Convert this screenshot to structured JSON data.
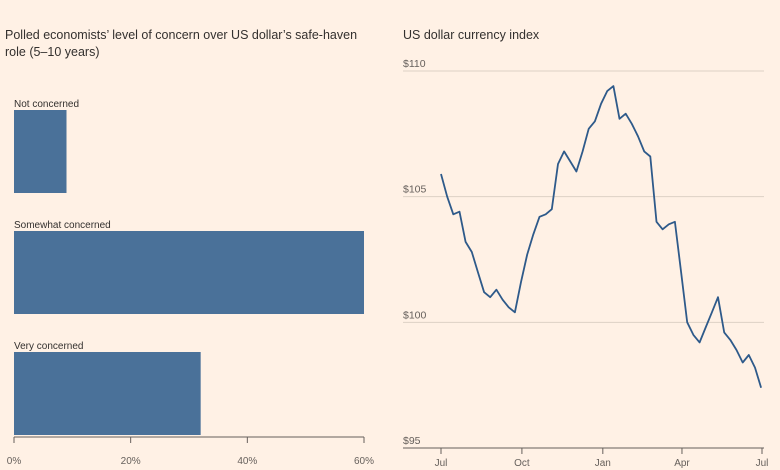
{
  "chart_data": [
    {
      "type": "bar",
      "orientation": "horizontal",
      "title": "Polled economists’ level of concern over US dollar’s safe-haven role (5–10 years)",
      "categories": [
        "Not concerned",
        "Somewhat concerned",
        "Very concerned"
      ],
      "values": [
        9,
        60,
        32
      ],
      "xlim": [
        0,
        60
      ],
      "xticks": [
        "0%",
        "20%",
        "40%",
        "60%"
      ],
      "xtick_values": [
        0,
        20,
        40,
        60
      ],
      "color": "#4a7199",
      "grid": false
    },
    {
      "type": "line",
      "title": "US dollar currency index",
      "ylim": [
        95,
        110
      ],
      "yticks": [
        "$95",
        "$100",
        "$105",
        "$110"
      ],
      "ytick_values": [
        95,
        100,
        105,
        110
      ],
      "xticks": [
        "Jul",
        "Oct",
        "Jan",
        "Apr",
        "Jul"
      ],
      "xtick_values": [
        "2024-07-01",
        "2024-10-01",
        "2025-01-01",
        "2025-04-01",
        "2025-07-01"
      ],
      "grid": true,
      "color": "#2e5a8a",
      "series": [
        {
          "x": [
            "2024-07-01",
            "2024-07-08",
            "2024-07-15",
            "2024-07-22",
            "2024-07-29",
            "2024-08-05",
            "2024-08-12",
            "2024-08-19",
            "2024-08-26",
            "2024-09-02",
            "2024-09-09",
            "2024-09-16",
            "2024-09-23",
            "2024-09-30",
            "2024-10-07",
            "2024-10-14",
            "2024-10-21",
            "2024-10-28",
            "2024-11-04",
            "2024-11-11",
            "2024-11-18",
            "2024-11-25",
            "2024-12-02",
            "2024-12-09",
            "2024-12-16",
            "2024-12-23",
            "2024-12-30",
            "2025-01-06",
            "2025-01-13",
            "2025-01-20",
            "2025-01-27",
            "2025-02-03",
            "2025-02-10",
            "2025-02-17",
            "2025-02-24",
            "2025-03-03",
            "2025-03-10",
            "2025-03-17",
            "2025-03-24",
            "2025-03-31",
            "2025-04-07",
            "2025-04-14",
            "2025-04-21",
            "2025-04-28",
            "2025-05-05",
            "2025-05-12",
            "2025-05-19",
            "2025-05-26",
            "2025-06-02",
            "2025-06-09",
            "2025-06-16",
            "2025-06-23",
            "2025-06-30"
          ],
          "values": [
            105.9,
            105.0,
            104.3,
            104.4,
            103.2,
            102.8,
            102.0,
            101.2,
            101.0,
            101.3,
            100.9,
            100.6,
            100.4,
            101.6,
            102.7,
            103.5,
            104.2,
            104.3,
            104.5,
            106.3,
            106.8,
            106.4,
            106.0,
            106.8,
            107.7,
            108.0,
            108.7,
            109.2,
            109.4,
            108.1,
            108.3,
            107.9,
            107.4,
            106.8,
            106.6,
            104.0,
            103.7,
            103.9,
            104.0,
            102.0,
            100.0,
            99.5,
            99.2,
            99.8,
            100.4,
            101.0,
            99.6,
            99.3,
            98.9,
            98.4,
            98.7,
            98.2,
            97.4
          ]
        }
      ]
    }
  ]
}
